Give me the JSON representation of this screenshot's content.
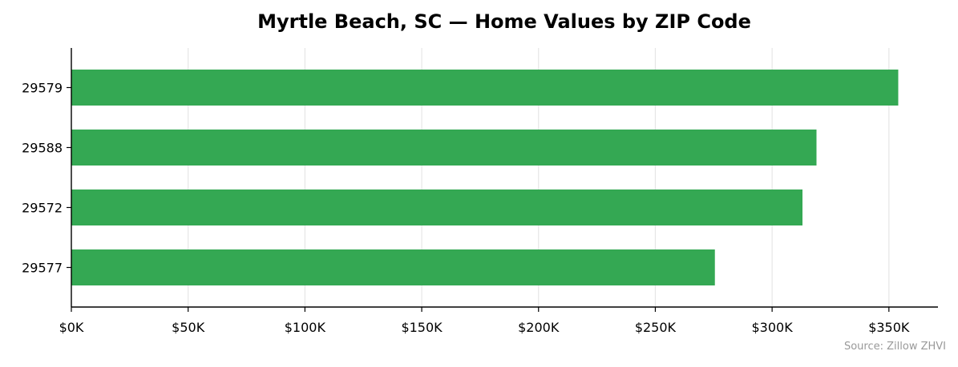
{
  "chart_data": {
    "type": "bar",
    "orientation": "horizontal",
    "title": "Myrtle Beach, SC — Home Values by ZIP Code",
    "xlabel": "",
    "ylabel": "",
    "categories": [
      "29579",
      "29588",
      "29572",
      "29577"
    ],
    "values": [
      354000,
      319000,
      313000,
      275500
    ],
    "xlim": [
      0,
      371000
    ],
    "x_ticks": [
      0,
      50000,
      100000,
      150000,
      200000,
      250000,
      300000,
      350000
    ],
    "x_tick_labels": [
      "$0K",
      "$50K",
      "$100K",
      "$150K",
      "$200K",
      "$250K",
      "$300K",
      "$350K"
    ],
    "grid": "vertical",
    "bar_color": "#34a853",
    "source_note": "Source: Zillow ZHVI"
  }
}
